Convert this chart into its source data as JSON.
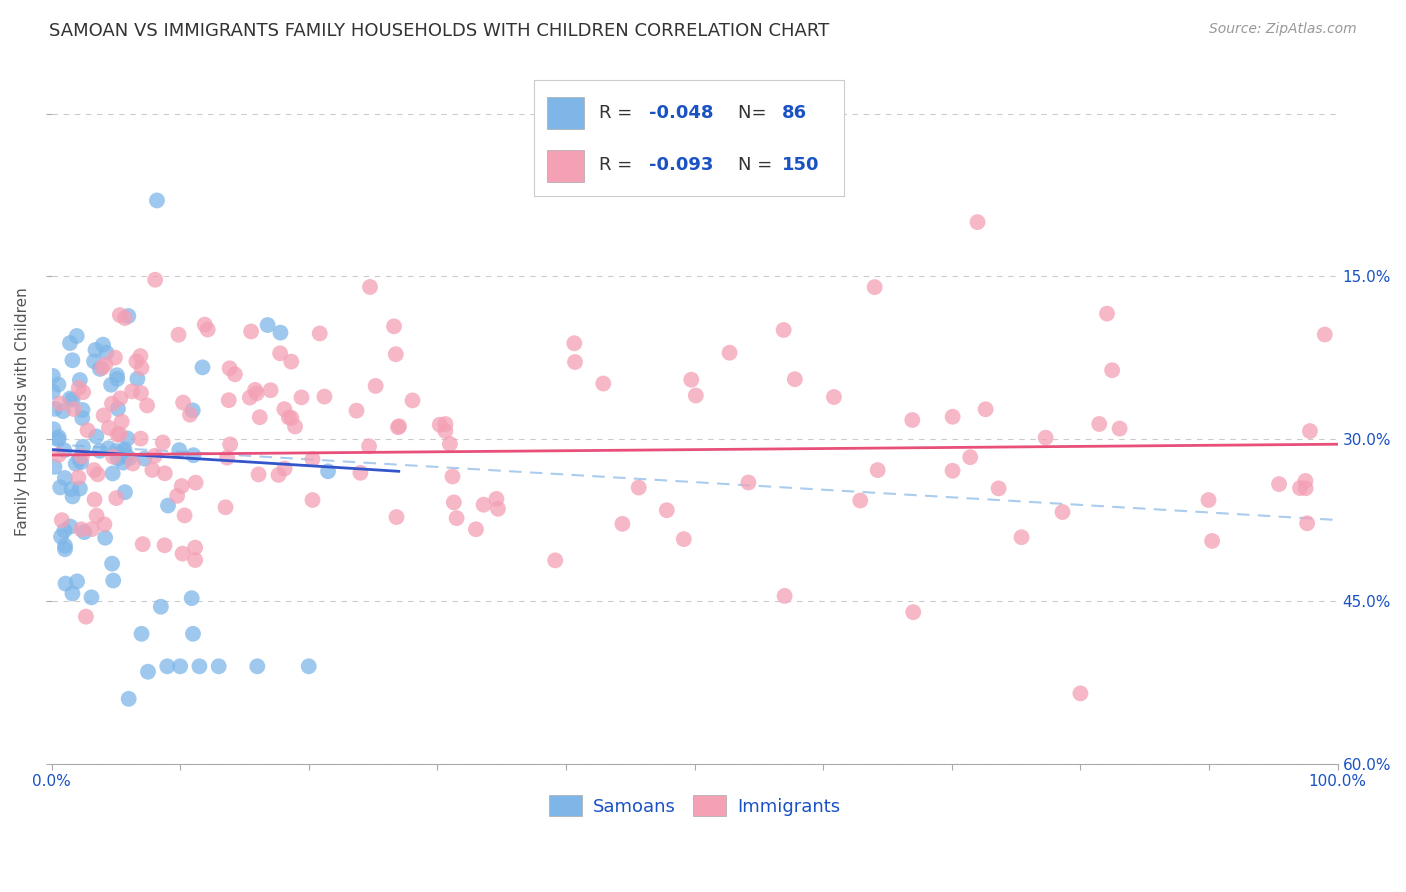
{
  "title": "SAMOAN VS IMMIGRANTS FAMILY HOUSEHOLDS WITH CHILDREN CORRELATION CHART",
  "source": "Source: ZipAtlas.com",
  "ylabel": "Family Households with Children",
  "x_min": 0.0,
  "x_max": 1.0,
  "y_min": 0.0,
  "y_max": 0.65,
  "x_ticks": [
    0.0,
    0.1,
    0.2,
    0.3,
    0.4,
    0.5,
    0.6,
    0.7,
    0.8,
    0.9,
    1.0
  ],
  "x_tick_labels": [
    "0.0%",
    "",
    "",
    "",
    "",
    "",
    "",
    "",
    "",
    "",
    "100.0%"
  ],
  "y_ticks": [
    0.0,
    0.15,
    0.3,
    0.45,
    0.6
  ],
  "left_y_tick_labels": [
    "",
    "",
    "",
    "",
    ""
  ],
  "right_y_tick_labels": [
    "60.0%",
    "45.0%",
    "30.0%",
    "15.0%",
    ""
  ],
  "samoan_color": "#7eb6e8",
  "immigrant_color": "#f4a0b5",
  "samoan_line_color": "#3355cc",
  "immigrant_line_color": "#e8507a",
  "dash_line_color": "#aaccee",
  "samoan_R": -0.048,
  "samoan_N": 86,
  "immigrant_R": -0.093,
  "immigrant_N": 150,
  "legend_label_color": "#1a52c4",
  "background_color": "#ffffff",
  "grid_color": "#cccccc",
  "title_fontsize": 13,
  "source_fontsize": 10,
  "axis_label_fontsize": 11,
  "tick_fontsize": 11,
  "legend_fontsize": 13,
  "scatter_size": 130,
  "scatter_alpha": 0.75
}
